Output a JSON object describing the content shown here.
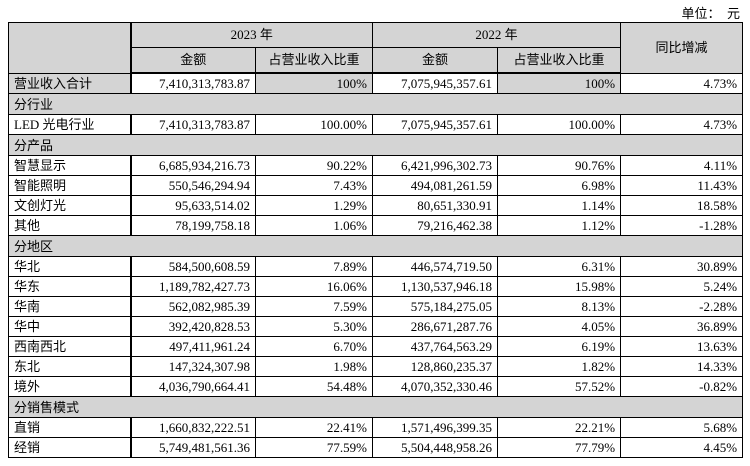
{
  "unit_label": "单位：  元",
  "table": {
    "header": {
      "year_2023": "2023 年",
      "year_2022": "2022 年",
      "yoy": "同比增减",
      "amount": "金额",
      "ratio": "占营业收入比重"
    },
    "colors": {
      "header_bg": "#d4d4d4",
      "section_bg": "#d4d4d4",
      "border": "#000000"
    },
    "rows": [
      {
        "type": "total",
        "label": "营业收入合计",
        "a2023": "7,410,313,783.87",
        "r2023": "100%",
        "a2022": "7,075,945,357.61",
        "r2022": "100%",
        "yoy": "4.73%"
      },
      {
        "type": "section",
        "label": "分行业"
      },
      {
        "type": "data",
        "label": "LED 光电行业",
        "a2023": "7,410,313,783.87",
        "r2023": "100.00%",
        "a2022": "7,075,945,357.61",
        "r2022": "100.00%",
        "yoy": "4.73%"
      },
      {
        "type": "section",
        "label": "分产品"
      },
      {
        "type": "data",
        "label": "智慧显示",
        "a2023": "6,685,934,216.73",
        "r2023": "90.22%",
        "a2022": "6,421,996,302.73",
        "r2022": "90.76%",
        "yoy": "4.11%"
      },
      {
        "type": "data",
        "label": "智能照明",
        "a2023": "550,546,294.94",
        "r2023": "7.43%",
        "a2022": "494,081,261.59",
        "r2022": "6.98%",
        "yoy": "11.43%"
      },
      {
        "type": "data",
        "label": "文创灯光",
        "a2023": "95,633,514.02",
        "r2023": "1.29%",
        "a2022": "80,651,330.91",
        "r2022": "1.14%",
        "yoy": "18.58%"
      },
      {
        "type": "data",
        "label": "其他",
        "a2023": "78,199,758.18",
        "r2023": "1.06%",
        "a2022": "79,216,462.38",
        "r2022": "1.12%",
        "yoy": "-1.28%"
      },
      {
        "type": "section",
        "label": "分地区"
      },
      {
        "type": "data",
        "label": "华北",
        "a2023": "584,500,608.59",
        "r2023": "7.89%",
        "a2022": "446,574,719.50",
        "r2022": "6.31%",
        "yoy": "30.89%"
      },
      {
        "type": "data",
        "label": "华东",
        "a2023": "1,189,782,427.73",
        "r2023": "16.06%",
        "a2022": "1,130,537,946.18",
        "r2022": "15.98%",
        "yoy": "5.24%"
      },
      {
        "type": "data",
        "label": "华南",
        "a2023": "562,082,985.39",
        "r2023": "7.59%",
        "a2022": "575,184,275.05",
        "r2022": "8.13%",
        "yoy": "-2.28%"
      },
      {
        "type": "data",
        "label": "华中",
        "a2023": "392,420,828.53",
        "r2023": "5.30%",
        "a2022": "286,671,287.76",
        "r2022": "4.05%",
        "yoy": "36.89%"
      },
      {
        "type": "data",
        "label": "西南西北",
        "a2023": "497,411,961.24",
        "r2023": "6.70%",
        "a2022": "437,764,563.29",
        "r2022": "6.19%",
        "yoy": "13.63%"
      },
      {
        "type": "data",
        "label": "东北",
        "a2023": "147,324,307.98",
        "r2023": "1.98%",
        "a2022": "128,860,235.37",
        "r2022": "1.82%",
        "yoy": "14.33%"
      },
      {
        "type": "data",
        "label": "境外",
        "a2023": "4,036,790,664.41",
        "r2023": "54.48%",
        "a2022": "4,070,352,330.46",
        "r2022": "57.52%",
        "yoy": "-0.82%"
      },
      {
        "type": "section",
        "label": "分销售模式"
      },
      {
        "type": "data",
        "label": "直销",
        "a2023": "1,660,832,222.51",
        "r2023": "22.41%",
        "a2022": "1,571,496,399.35",
        "r2022": "22.21%",
        "yoy": "5.68%"
      },
      {
        "type": "data",
        "label": "经销",
        "a2023": "5,749,481,561.36",
        "r2023": "77.59%",
        "a2022": "5,504,448,958.26",
        "r2022": "77.79%",
        "yoy": "4.45%"
      }
    ]
  }
}
